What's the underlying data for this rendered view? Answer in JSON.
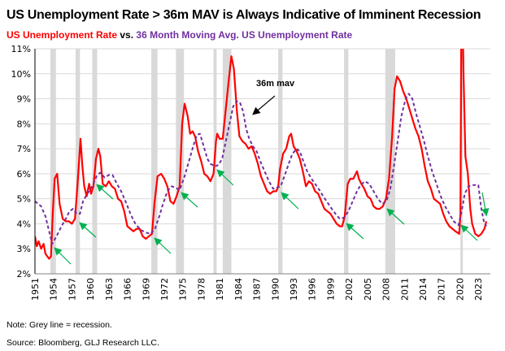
{
  "chart_data": {
    "type": "line",
    "title": "US Unemployment Rate > 36m MAV is Always Indicative of Imminent Recession",
    "subtitle": {
      "part1": "US Unemployment Rate",
      "part2": " vs. ",
      "part3": "36 Month Moving Avg. US Unemployment Rate"
    },
    "ylim": [
      2,
      11
    ],
    "yticks": [
      "2%",
      "3%",
      "4%",
      "5%",
      "6%",
      "7%",
      "8%",
      "9%",
      "10%",
      "11%"
    ],
    "xlim": [
      1951,
      2024.3
    ],
    "xticks": [
      "1951",
      "1954",
      "1957",
      "1960",
      "1963",
      "1966",
      "1969",
      "1972",
      "1975",
      "1978",
      "1981",
      "1984",
      "1987",
      "1990",
      "1993",
      "1996",
      "1999",
      "2002",
      "2005",
      "2008",
      "2011",
      "2014",
      "2017",
      "2020",
      "2023"
    ],
    "grid": true,
    "annotation": "36m mav",
    "colors": {
      "unemployment": "#ff0000",
      "mav": "#7030a0",
      "recession": "#d9d9d9",
      "arrows": "#00b050"
    },
    "recessions": [
      [
        1953.5,
        1954.4
      ],
      [
        1957.6,
        1958.3
      ],
      [
        1960.3,
        1961.1
      ],
      [
        1969.9,
        1970.9
      ],
      [
        1973.9,
        1975.2
      ],
      [
        1980.0,
        1980.5
      ],
      [
        1981.5,
        1982.9
      ],
      [
        1990.5,
        1991.2
      ],
      [
        2001.2,
        2001.9
      ],
      [
        2007.9,
        2009.5
      ],
      [
        2020.1,
        2020.3
      ]
    ],
    "series": [
      {
        "key": "unemployment",
        "style": "solid",
        "points": [
          [
            1951.0,
            3.5
          ],
          [
            1951.3,
            3.1
          ],
          [
            1951.6,
            3.3
          ],
          [
            1952.0,
            3.0
          ],
          [
            1952.4,
            3.2
          ],
          [
            1952.7,
            2.8
          ],
          [
            1953.3,
            2.6
          ],
          [
            1953.6,
            2.7
          ],
          [
            1953.9,
            4.5
          ],
          [
            1954.2,
            5.8
          ],
          [
            1954.6,
            6.0
          ],
          [
            1955.0,
            4.8
          ],
          [
            1955.5,
            4.2
          ],
          [
            1956.0,
            4.1
          ],
          [
            1956.5,
            4.1
          ],
          [
            1957.0,
            4.0
          ],
          [
            1957.5,
            4.2
          ],
          [
            1957.9,
            5.5
          ],
          [
            1958.4,
            7.4
          ],
          [
            1958.7,
            6.3
          ],
          [
            1959.0,
            5.5
          ],
          [
            1959.4,
            5.1
          ],
          [
            1959.8,
            5.6
          ],
          [
            1960.1,
            5.2
          ],
          [
            1960.5,
            5.5
          ],
          [
            1960.9,
            6.6
          ],
          [
            1961.3,
            7.0
          ],
          [
            1961.6,
            6.7
          ],
          [
            1962.0,
            5.6
          ],
          [
            1962.5,
            5.5
          ],
          [
            1963.0,
            5.7
          ],
          [
            1963.5,
            5.5
          ],
          [
            1964.0,
            5.4
          ],
          [
            1964.5,
            5.0
          ],
          [
            1965.0,
            4.9
          ],
          [
            1965.5,
            4.5
          ],
          [
            1966.0,
            3.9
          ],
          [
            1966.5,
            3.8
          ],
          [
            1967.0,
            3.7
          ],
          [
            1967.5,
            3.8
          ],
          [
            1968.0,
            3.8
          ],
          [
            1968.5,
            3.5
          ],
          [
            1969.0,
            3.4
          ],
          [
            1969.5,
            3.5
          ],
          [
            1970.0,
            3.6
          ],
          [
            1970.4,
            4.8
          ],
          [
            1970.9,
            5.9
          ],
          [
            1971.5,
            6.0
          ],
          [
            1972.0,
            5.8
          ],
          [
            1972.5,
            5.5
          ],
          [
            1973.0,
            4.9
          ],
          [
            1973.5,
            4.8
          ],
          [
            1974.0,
            5.1
          ],
          [
            1974.5,
            5.5
          ],
          [
            1974.9,
            8.0
          ],
          [
            1975.3,
            8.8
          ],
          [
            1975.8,
            8.3
          ],
          [
            1976.2,
            7.6
          ],
          [
            1976.6,
            7.7
          ],
          [
            1977.0,
            7.5
          ],
          [
            1977.5,
            6.9
          ],
          [
            1978.0,
            6.5
          ],
          [
            1978.5,
            6.0
          ],
          [
            1979.0,
            5.9
          ],
          [
            1979.5,
            5.7
          ],
          [
            1980.0,
            6.0
          ],
          [
            1980.4,
            7.3
          ],
          [
            1980.6,
            7.6
          ],
          [
            1981.0,
            7.4
          ],
          [
            1981.5,
            7.4
          ],
          [
            1982.0,
            8.6
          ],
          [
            1982.5,
            9.8
          ],
          [
            1982.9,
            10.7
          ],
          [
            1983.3,
            10.2
          ],
          [
            1983.8,
            8.5
          ],
          [
            1984.2,
            7.5
          ],
          [
            1984.7,
            7.3
          ],
          [
            1985.2,
            7.2
          ],
          [
            1985.7,
            7.0
          ],
          [
            1986.2,
            7.1
          ],
          [
            1986.7,
            6.8
          ],
          [
            1987.2,
            6.4
          ],
          [
            1987.7,
            5.9
          ],
          [
            1988.2,
            5.6
          ],
          [
            1988.7,
            5.3
          ],
          [
            1989.2,
            5.2
          ],
          [
            1989.7,
            5.3
          ],
          [
            1990.2,
            5.3
          ],
          [
            1990.5,
            5.5
          ],
          [
            1990.8,
            6.2
          ],
          [
            1991.3,
            6.8
          ],
          [
            1991.8,
            7.0
          ],
          [
            1992.3,
            7.5
          ],
          [
            1992.6,
            7.6
          ],
          [
            1993.0,
            7.1
          ],
          [
            1993.5,
            6.9
          ],
          [
            1994.0,
            6.6
          ],
          [
            1994.5,
            6.1
          ],
          [
            1995.0,
            5.5
          ],
          [
            1995.5,
            5.7
          ],
          [
            1996.0,
            5.6
          ],
          [
            1996.5,
            5.3
          ],
          [
            1997.0,
            5.2
          ],
          [
            1997.5,
            4.9
          ],
          [
            1998.0,
            4.6
          ],
          [
            1998.5,
            4.5
          ],
          [
            1999.0,
            4.4
          ],
          [
            1999.5,
            4.2
          ],
          [
            2000.0,
            4.0
          ],
          [
            2000.5,
            3.9
          ],
          [
            2000.9,
            3.9
          ],
          [
            2001.3,
            4.3
          ],
          [
            2001.8,
            5.6
          ],
          [
            2002.2,
            5.8
          ],
          [
            2002.7,
            5.8
          ],
          [
            2003.3,
            6.1
          ],
          [
            2003.6,
            5.8
          ],
          [
            2004.0,
            5.6
          ],
          [
            2004.5,
            5.4
          ],
          [
            2005.0,
            5.1
          ],
          [
            2005.5,
            5.0
          ],
          [
            2006.0,
            4.7
          ],
          [
            2006.5,
            4.6
          ],
          [
            2007.0,
            4.6
          ],
          [
            2007.5,
            4.7
          ],
          [
            2008.0,
            5.0
          ],
          [
            2008.5,
            5.8
          ],
          [
            2009.0,
            7.5
          ],
          [
            2009.4,
            9.4
          ],
          [
            2009.8,
            9.9
          ],
          [
            2010.3,
            9.7
          ],
          [
            2010.8,
            9.3
          ],
          [
            2011.3,
            9.0
          ],
          [
            2011.8,
            8.6
          ],
          [
            2012.3,
            8.2
          ],
          [
            2012.8,
            7.8
          ],
          [
            2013.3,
            7.5
          ],
          [
            2013.8,
            7.0
          ],
          [
            2014.3,
            6.3
          ],
          [
            2014.8,
            5.7
          ],
          [
            2015.3,
            5.4
          ],
          [
            2015.8,
            5.0
          ],
          [
            2016.3,
            4.9
          ],
          [
            2016.8,
            4.8
          ],
          [
            2017.3,
            4.4
          ],
          [
            2017.8,
            4.1
          ],
          [
            2018.3,
            3.9
          ],
          [
            2018.8,
            3.8
          ],
          [
            2019.3,
            3.7
          ],
          [
            2019.9,
            3.6
          ],
          [
            2020.1,
            4.4
          ],
          [
            2020.3,
            14.7
          ],
          [
            2020.6,
            10.0
          ],
          [
            2020.9,
            6.7
          ],
          [
            2021.3,
            6.0
          ],
          [
            2021.7,
            4.6
          ],
          [
            2022.0,
            4.0
          ],
          [
            2022.5,
            3.6
          ],
          [
            2023.0,
            3.5
          ],
          [
            2023.5,
            3.6
          ],
          [
            2024.0,
            3.8
          ],
          [
            2024.3,
            4.1
          ]
        ]
      },
      {
        "key": "mav",
        "style": "dashed",
        "points": [
          [
            1951.0,
            4.9
          ],
          [
            1952.0,
            4.7
          ],
          [
            1952.7,
            4.3
          ],
          [
            1953.3,
            3.7
          ],
          [
            1953.8,
            3.2
          ],
          [
            1954.5,
            3.5
          ],
          [
            1955.3,
            3.9
          ],
          [
            1956.0,
            4.2
          ],
          [
            1956.6,
            4.5
          ],
          [
            1957.2,
            4.6
          ],
          [
            1957.8,
            4.4
          ],
          [
            1958.3,
            4.4
          ],
          [
            1958.8,
            4.9
          ],
          [
            1959.5,
            5.2
          ],
          [
            1960.3,
            5.5
          ],
          [
            1961.0,
            5.9
          ],
          [
            1961.6,
            6.05
          ],
          [
            1962.3,
            5.85
          ],
          [
            1963.0,
            5.95
          ],
          [
            1963.6,
            5.95
          ],
          [
            1964.3,
            5.6
          ],
          [
            1965.0,
            5.3
          ],
          [
            1965.7,
            4.9
          ],
          [
            1966.5,
            4.4
          ],
          [
            1967.3,
            4.0
          ],
          [
            1968.2,
            3.75
          ],
          [
            1969.0,
            3.65
          ],
          [
            1969.8,
            3.6
          ],
          [
            1970.5,
            3.8
          ],
          [
            1971.2,
            4.3
          ],
          [
            1971.8,
            4.8
          ],
          [
            1972.5,
            5.3
          ],
          [
            1973.2,
            5.5
          ],
          [
            1973.8,
            5.45
          ],
          [
            1974.5,
            5.35
          ],
          [
            1975.3,
            5.9
          ],
          [
            1976.0,
            6.5
          ],
          [
            1976.7,
            7.1
          ],
          [
            1977.3,
            7.55
          ],
          [
            1977.8,
            7.6
          ],
          [
            1978.4,
            7.1
          ],
          [
            1979.0,
            6.6
          ],
          [
            1979.5,
            6.4
          ],
          [
            1980.2,
            6.3
          ],
          [
            1980.8,
            6.35
          ],
          [
            1981.4,
            6.6
          ],
          [
            1982.0,
            7.3
          ],
          [
            1982.6,
            8.0
          ],
          [
            1983.2,
            8.7
          ],
          [
            1983.8,
            8.9
          ],
          [
            1984.3,
            8.85
          ],
          [
            1984.8,
            8.5
          ],
          [
            1985.3,
            7.8
          ],
          [
            1985.8,
            7.4
          ],
          [
            1986.4,
            7.1
          ],
          [
            1987.0,
            6.9
          ],
          [
            1987.6,
            6.5
          ],
          [
            1988.3,
            6.1
          ],
          [
            1989.0,
            5.7
          ],
          [
            1989.7,
            5.4
          ],
          [
            1990.3,
            5.45
          ],
          [
            1990.9,
            5.5
          ],
          [
            1991.5,
            5.9
          ],
          [
            1992.2,
            6.4
          ],
          [
            1992.8,
            6.8
          ],
          [
            1993.5,
            7.0
          ],
          [
            1994.0,
            6.9
          ],
          [
            1994.6,
            6.5
          ],
          [
            1995.2,
            6.1
          ],
          [
            1995.9,
            5.8
          ],
          [
            1996.5,
            5.6
          ],
          [
            1997.2,
            5.35
          ],
          [
            1997.8,
            5.1
          ],
          [
            1998.5,
            4.85
          ],
          [
            1999.2,
            4.6
          ],
          [
            1999.8,
            4.4
          ],
          [
            2000.5,
            4.2
          ],
          [
            2001.2,
            4.25
          ],
          [
            2001.9,
            4.5
          ],
          [
            2002.6,
            4.9
          ],
          [
            2003.3,
            5.3
          ],
          [
            2003.9,
            5.55
          ],
          [
            2004.6,
            5.7
          ],
          [
            2005.3,
            5.6
          ],
          [
            2006.0,
            5.3
          ],
          [
            2006.7,
            5.0
          ],
          [
            2007.4,
            4.8
          ],
          [
            2008.1,
            4.9
          ],
          [
            2008.7,
            5.4
          ],
          [
            2009.3,
            6.3
          ],
          [
            2009.9,
            7.3
          ],
          [
            2010.5,
            8.3
          ],
          [
            2011.2,
            9.0
          ],
          [
            2011.7,
            9.2
          ],
          [
            2012.3,
            9.0
          ],
          [
            2012.9,
            8.4
          ],
          [
            2013.5,
            7.9
          ],
          [
            2014.2,
            7.3
          ],
          [
            2014.8,
            6.7
          ],
          [
            2015.5,
            6.1
          ],
          [
            2016.2,
            5.6
          ],
          [
            2016.9,
            5.1
          ],
          [
            2017.6,
            4.7
          ],
          [
            2018.3,
            4.4
          ],
          [
            2019.0,
            4.1
          ],
          [
            2019.8,
            3.95
          ],
          [
            2020.3,
            4.5
          ],
          [
            2020.8,
            5.2
          ],
          [
            2021.4,
            5.5
          ],
          [
            2022.2,
            5.55
          ],
          [
            2023.0,
            5.55
          ],
          [
            2023.5,
            4.6
          ],
          [
            2023.9,
            4.1
          ],
          [
            2024.3,
            3.9
          ]
        ]
      }
    ]
  },
  "notes": {
    "note": "Note: Grey line = recession.",
    "source": "Source: Bloomberg, GLJ Research LLC."
  }
}
